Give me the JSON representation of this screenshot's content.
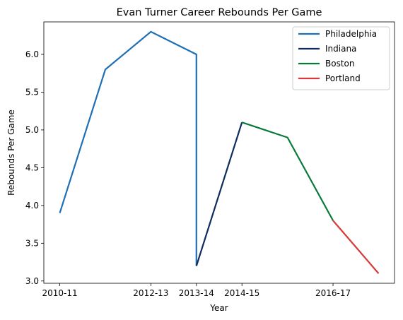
{
  "chart_data": {
    "type": "line",
    "title": "Evan Turner Career Rebounds Per Game",
    "xlabel": "Year",
    "ylabel": "Rebounds Per Game",
    "x_tick_labels": [
      "2010-11",
      "2012-13",
      "2013-14",
      "2014-15",
      "2016-17"
    ],
    "ylim": [
      2.97,
      6.43
    ],
    "y_ticks": [
      "3.0",
      "3.5",
      "4.0",
      "4.5",
      "5.0",
      "5.5",
      "6.0"
    ],
    "grid": false,
    "legend_position": "top-right",
    "series": [
      {
        "name": "Philadelphia",
        "color": "#1f6fb4",
        "points": [
          {
            "x": "2010-11",
            "y": 3.9
          },
          {
            "x": "2011-12",
            "y": 5.8
          },
          {
            "x": "2012-13",
            "y": 6.3
          },
          {
            "x": "2013-14",
            "y": 6.0
          },
          {
            "x": "2013-14",
            "y": 3.2
          }
        ]
      },
      {
        "name": "Indiana",
        "color": "#0c2d5e",
        "points": [
          {
            "x": "2013-14",
            "y": 3.2
          },
          {
            "x": "2014-15",
            "y": 5.1
          }
        ]
      },
      {
        "name": "Boston",
        "color": "#0a7a3a",
        "points": [
          {
            "x": "2014-15",
            "y": 5.1
          },
          {
            "x": "2015-16",
            "y": 4.9
          },
          {
            "x": "2016-17",
            "y": 3.8
          }
        ]
      },
      {
        "name": "Portland",
        "color": "#d63a3a",
        "points": [
          {
            "x": "2016-17",
            "y": 3.8
          },
          {
            "x": "2017-18",
            "y": 3.1
          }
        ]
      }
    ]
  }
}
